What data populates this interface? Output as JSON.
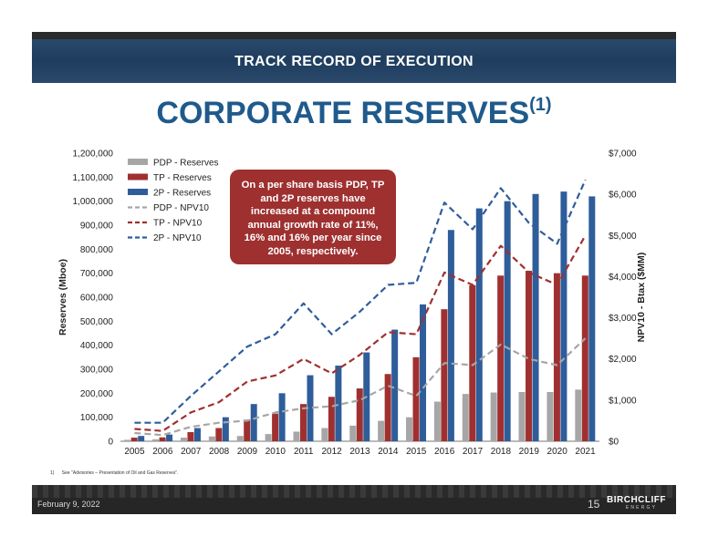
{
  "header": {
    "banner_title": "TRACK RECORD OF EXECUTION"
  },
  "title": {
    "main": "CORPORATE RESERVES",
    "superscript": "(1)"
  },
  "callout": {
    "text": "On a per share basis PDP, TP and 2P reserves have increased at a compound annual growth rate of 11%, 16% and 16% per year since 2005, respectively."
  },
  "footnote": {
    "marker": "1)",
    "text": "See \"Advisories – Presentation of Oil and Gas Reserves\"."
  },
  "footer": {
    "date": "February 9, 2022",
    "page": "15",
    "logo_main": "BIRCHCLIFF",
    "logo_sub": "ENERGY"
  },
  "colors": {
    "pdp": "#a6a6a6",
    "tp": "#a03030",
    "p2": "#2e5d9a",
    "title": "#1f5a8c",
    "callout": "#9e3030"
  },
  "chart_data": {
    "type": "bar",
    "categories": [
      "2005",
      "2006",
      "2007",
      "2008",
      "2009",
      "2010",
      "2011",
      "2012",
      "2013",
      "2014",
      "2015",
      "2016",
      "2017",
      "2018",
      "2019",
      "2020",
      "2021"
    ],
    "ylabel": "Reserves (Mboe)",
    "y2label": "NPV10 - Btax ($MM)",
    "ylim": [
      0,
      1200000
    ],
    "y2lim": [
      0,
      7000
    ],
    "yticks": [
      "0",
      "100,000",
      "200,000",
      "300,000",
      "400,000",
      "500,000",
      "600,000",
      "700,000",
      "800,000",
      "900,000",
      "1,000,000",
      "1,100,000",
      "1,200,000"
    ],
    "y2ticks": [
      "$0",
      "$1,000",
      "$2,000",
      "$3,000",
      "$4,000",
      "$5,000",
      "$6,000",
      "$7,000"
    ],
    "legend_position": "top-left",
    "series": [
      {
        "name": "PDP - Reserves",
        "kind": "bar",
        "axis": "left",
        "values": [
          6000,
          8000,
          15000,
          20000,
          22000,
          30000,
          40000,
          55000,
          65000,
          85000,
          100000,
          165000,
          197000,
          203000,
          205000,
          205000,
          215000
        ]
      },
      {
        "name": "TP - Reserves",
        "kind": "bar",
        "axis": "left",
        "values": [
          15000,
          16000,
          38000,
          55000,
          90000,
          115000,
          155000,
          185000,
          220000,
          280000,
          350000,
          550000,
          650000,
          690000,
          710000,
          700000,
          690000
        ]
      },
      {
        "name": "2P - Reserves",
        "kind": "bar",
        "axis": "left",
        "values": [
          22000,
          28000,
          55000,
          100000,
          155000,
          200000,
          275000,
          315000,
          370000,
          465000,
          570000,
          880000,
          970000,
          1000000,
          1030000,
          1040000,
          1020000
        ]
      },
      {
        "name": "PDP - NPV10",
        "kind": "line",
        "axis": "right",
        "values": [
          200,
          150,
          350,
          450,
          500,
          700,
          800,
          850,
          1000,
          1350,
          1100,
          1900,
          1850,
          2350,
          2000,
          1850,
          2500
        ]
      },
      {
        "name": "TP - NPV10",
        "kind": "line",
        "axis": "right",
        "values": [
          300,
          250,
          700,
          950,
          1450,
          1600,
          2000,
          1650,
          2100,
          2650,
          2600,
          4100,
          3800,
          4750,
          4100,
          3800,
          5000
        ]
      },
      {
        "name": "2P - NPV10",
        "kind": "line",
        "axis": "right",
        "values": [
          450,
          450,
          1100,
          1700,
          2300,
          2600,
          3350,
          2600,
          3150,
          3800,
          3850,
          5800,
          5150,
          6150,
          5300,
          4800,
          6350
        ]
      }
    ]
  }
}
